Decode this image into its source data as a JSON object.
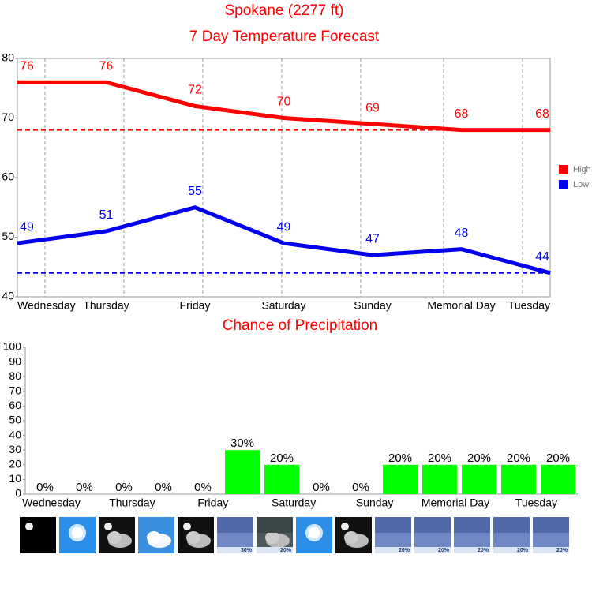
{
  "chart_data": [
    {
      "type": "line",
      "title": "Spokane (2277 ft)",
      "subtitle": "7 Day Temperature Forecast",
      "categories": [
        "Wednesday",
        "Thursday",
        "Friday",
        "Saturday",
        "Sunday",
        "Memorial Day",
        "Tuesday"
      ],
      "series": [
        {
          "name": "High",
          "color": "#ff0000",
          "values": [
            76,
            76,
            72,
            70,
            69,
            68,
            68
          ]
        },
        {
          "name": "Low",
          "color": "#0000ee",
          "values": [
            49,
            51,
            55,
            49,
            47,
            48,
            44
          ]
        }
      ],
      "reference_lines": [
        {
          "value": 68,
          "color": "#ff0000"
        },
        {
          "value": 44,
          "color": "#0000ee"
        }
      ],
      "ylim": [
        40,
        80
      ],
      "yticks": [
        40,
        50,
        60,
        70,
        80
      ],
      "legend": "right"
    },
    {
      "type": "bar",
      "title": "Chance of Precipitation",
      "categories": [
        "Wednesday",
        null,
        "Thursday",
        null,
        "Friday",
        null,
        "Saturday",
        null,
        "Sunday",
        null,
        "Memorial Day",
        null,
        "Tuesday",
        null
      ],
      "values": [
        0,
        0,
        0,
        0,
        0,
        30,
        20,
        0,
        0,
        20,
        20,
        20,
        20,
        20
      ],
      "value_labels": [
        "0%",
        "0%",
        "0%",
        "0%",
        "0%",
        "30%",
        "20%",
        "0%",
        "0%",
        "20%",
        "20%",
        "20%",
        "20%",
        "20%"
      ],
      "icon_labels": [
        null,
        null,
        null,
        null,
        null,
        "30%",
        "20%",
        null,
        null,
        "20%",
        "20%",
        "20%",
        "20%",
        "20%"
      ],
      "color": "#00ff00",
      "ylim": [
        0,
        100
      ],
      "yticks": [
        0,
        10,
        20,
        30,
        40,
        50,
        60,
        70,
        80,
        90,
        100
      ]
    }
  ]
}
